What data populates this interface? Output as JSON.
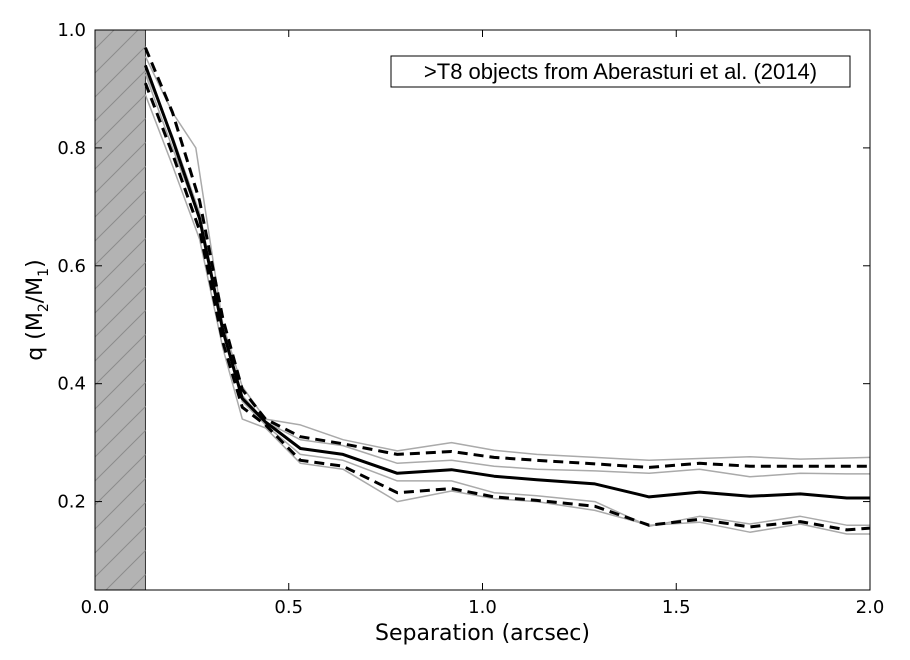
{
  "chart_data": {
    "type": "line",
    "xlabel": "Separation (arcsec)",
    "ylabel": {
      "prefix": "q (M",
      "sub1": "2",
      "mid": "/M",
      "sub2": "1",
      "suffix": ")"
    },
    "annotation": ">T8 objects from Aberasturi et al. (2014)",
    "xlim": [
      0.0,
      2.0
    ],
    "ylim": [
      0.05,
      1.0
    ],
    "xticks": [
      {
        "value": 0.0,
        "label": "0.0"
      },
      {
        "value": 0.5,
        "label": "0.5"
      },
      {
        "value": 1.0,
        "label": "1.0"
      },
      {
        "value": 1.5,
        "label": "1.5"
      },
      {
        "value": 2.0,
        "label": "2.0"
      }
    ],
    "yticks": [
      {
        "value": 0.2,
        "label": "0.2"
      },
      {
        "value": 0.4,
        "label": "0.4"
      },
      {
        "value": 0.6,
        "label": "0.6"
      },
      {
        "value": 0.8,
        "label": "0.8"
      },
      {
        "value": 1.0,
        "label": "1.0"
      }
    ],
    "shaded_region": {
      "x": [
        0.0,
        0.13
      ],
      "fill": "#b3b3b3",
      "hatch": "diagonal"
    },
    "grid": false,
    "series": [
      {
        "style": "solid",
        "color": "#000000",
        "x": [
          0.13,
          0.2,
          0.27,
          0.33,
          0.38,
          0.44,
          0.53,
          0.64,
          0.78,
          0.92,
          1.03,
          1.14,
          1.29,
          1.43,
          1.56,
          1.69,
          1.82,
          1.94,
          2.0
        ],
        "y": [
          0.94,
          0.815,
          0.68,
          0.49,
          0.375,
          0.335,
          0.29,
          0.28,
          0.248,
          0.254,
          0.243,
          0.237,
          0.23,
          0.208,
          0.216,
          0.209,
          0.213,
          0.206,
          0.206
        ]
      },
      {
        "style": "dashed",
        "color": "#000000",
        "x": [
          0.13,
          0.2,
          0.27,
          0.33,
          0.38,
          0.44,
          0.53,
          0.64,
          0.78,
          0.92,
          1.03,
          1.14,
          1.29,
          1.43,
          1.56,
          1.69,
          1.82,
          1.94,
          2.0
        ],
        "y": [
          0.97,
          0.86,
          0.71,
          0.51,
          0.39,
          0.34,
          0.31,
          0.298,
          0.28,
          0.285,
          0.275,
          0.27,
          0.264,
          0.258,
          0.265,
          0.26,
          0.26,
          0.26,
          0.26
        ]
      },
      {
        "style": "dashed",
        "color": "#000000",
        "x": [
          0.13,
          0.2,
          0.27,
          0.33,
          0.38,
          0.44,
          0.53,
          0.64,
          0.78,
          0.92,
          1.03,
          1.14,
          1.29,
          1.43,
          1.56,
          1.69,
          1.82,
          1.94,
          2.0
        ],
        "y": [
          0.91,
          0.79,
          0.66,
          0.47,
          0.36,
          0.33,
          0.27,
          0.26,
          0.215,
          0.222,
          0.208,
          0.202,
          0.192,
          0.16,
          0.17,
          0.157,
          0.166,
          0.152,
          0.155
        ]
      },
      {
        "style": "thin",
        "color": "#aaaaaa",
        "x": [
          0.13,
          0.2,
          0.26,
          0.33,
          0.38,
          0.44,
          0.53,
          0.64,
          0.78,
          0.92,
          1.03,
          1.14,
          1.29,
          1.43,
          1.56,
          1.69,
          1.82,
          1.94,
          2.0
        ],
        "y": [
          0.955,
          0.86,
          0.8,
          0.5,
          0.395,
          0.34,
          0.33,
          0.305,
          0.286,
          0.3,
          0.287,
          0.28,
          0.275,
          0.27,
          0.273,
          0.276,
          0.272,
          0.274,
          0.275
        ]
      },
      {
        "style": "thin",
        "color": "#aaaaaa",
        "x": [
          0.13,
          0.2,
          0.27,
          0.33,
          0.38,
          0.44,
          0.53,
          0.64,
          0.78,
          0.92,
          1.03,
          1.14,
          1.29,
          1.43,
          1.56,
          1.69,
          1.82,
          1.94,
          2.0
        ],
        "y": [
          0.93,
          0.82,
          0.69,
          0.495,
          0.38,
          0.335,
          0.305,
          0.295,
          0.265,
          0.27,
          0.26,
          0.255,
          0.252,
          0.248,
          0.255,
          0.242,
          0.248,
          0.247,
          0.247
        ]
      },
      {
        "style": "thin",
        "color": "#aaaaaa",
        "x": [
          0.13,
          0.2,
          0.27,
          0.33,
          0.38,
          0.44,
          0.53,
          0.64,
          0.78,
          0.92,
          1.03,
          1.14,
          1.29,
          1.43,
          1.56,
          1.69,
          1.82,
          1.94,
          2.0
        ],
        "y": [
          0.925,
          0.8,
          0.68,
          0.485,
          0.37,
          0.33,
          0.28,
          0.27,
          0.235,
          0.235,
          0.215,
          0.21,
          0.2,
          0.158,
          0.175,
          0.162,
          0.175,
          0.16,
          0.16
        ]
      },
      {
        "style": "thin",
        "color": "#aaaaaa",
        "x": [
          0.13,
          0.2,
          0.27,
          0.33,
          0.38,
          0.44,
          0.53,
          0.64,
          0.78,
          0.92,
          1.03,
          1.14,
          1.29,
          1.43,
          1.56,
          1.69,
          1.82,
          1.94,
          2.0
        ],
        "y": [
          0.89,
          0.77,
          0.645,
          0.46,
          0.34,
          0.325,
          0.265,
          0.255,
          0.2,
          0.218,
          0.205,
          0.2,
          0.185,
          0.16,
          0.165,
          0.148,
          0.162,
          0.145,
          0.145
        ]
      }
    ]
  }
}
